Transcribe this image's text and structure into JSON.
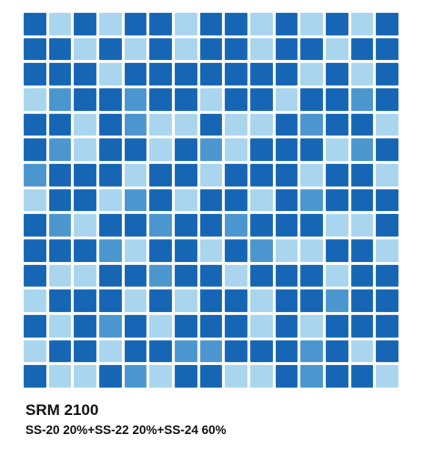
{
  "product": {
    "code": "SRM 2100",
    "mix": "SS-20 20%+SS-22 20%+SS-24 60%"
  },
  "colors": {
    "SS-20": "#a9d6ee",
    "SS-22": "#4b96cf",
    "SS-24": "#1666b5",
    "grout": "#ffffff"
  },
  "mosaic": {
    "columns": 15,
    "rows": [
      "DLDLDDLDDLDLDLD",
      "DDLDLDLDDLDDLDD",
      "DDDLDDDDDDDLDLD",
      "LMDDMDDLDDLDDMD",
      "DDLDMLLDLLDMDDL",
      "DMLDDLDMLDDDLMD",
      "MDDDLDDLDDDLDDL",
      "LDDLMDLDDLDMDDD",
      "DMLDDMDDMDDDLLD",
      "DDDMLDDLDMLLDDL",
      "DLLDDMDDLDDDLDD",
      "LDDDLDLDDLDDMDD",
      "DLDMDLDDDLDLDDD",
      "LDDLDDMMDDDMDLD",
      "DLLDMLDDLLDMDDL"
    ]
  }
}
